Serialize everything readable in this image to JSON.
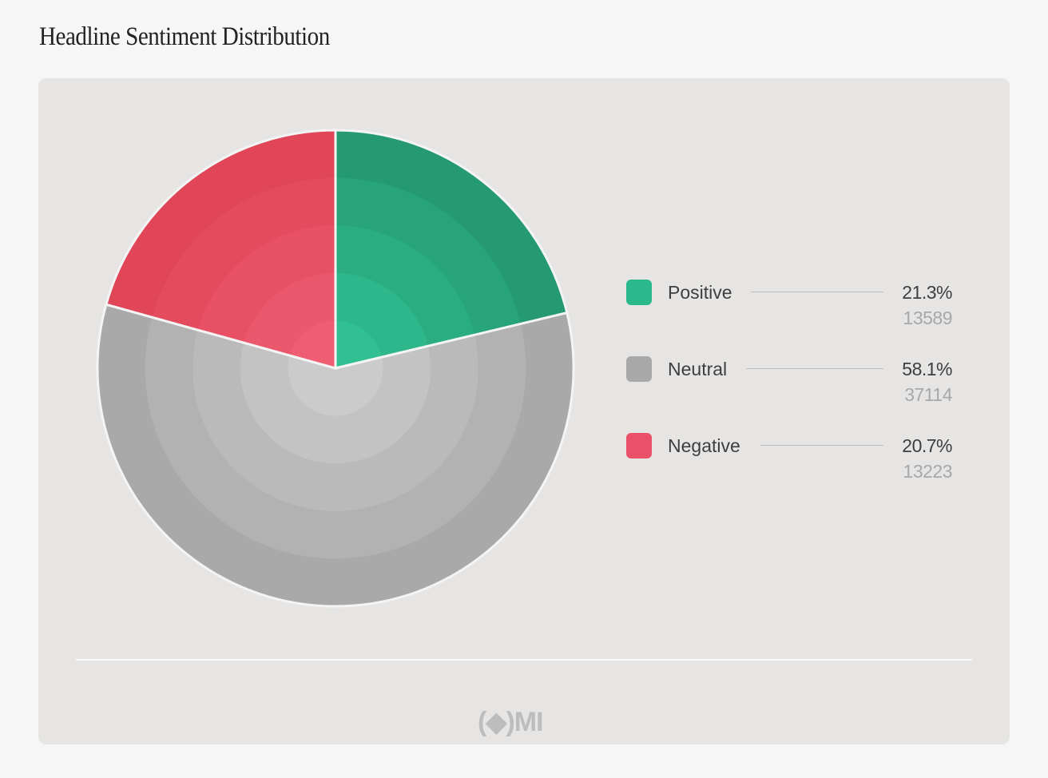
{
  "title": "Headline Sentiment Distribution",
  "logo_text": "(◆)MI",
  "chart_data": {
    "type": "pie",
    "title": "Headline Sentiment Distribution",
    "legend_position": "right",
    "slices": [
      {
        "label": "Positive",
        "percent": "21.3%",
        "value": 13589,
        "count": "13589",
        "color": "#2bb88a",
        "outer": "#259a72",
        "inner": "#30c092"
      },
      {
        "label": "Neutral",
        "percent": "58.1%",
        "value": 37114,
        "count": "37114",
        "color": "#a9a9a9",
        "outer": "#a9a9a9",
        "inner": "#cbcbcb"
      },
      {
        "label": "Negative",
        "percent": "20.7%",
        "value": 13223,
        "count": "13223",
        "color": "#ea5068",
        "outer": "#e04558",
        "inner": "#ef5d72"
      }
    ]
  }
}
